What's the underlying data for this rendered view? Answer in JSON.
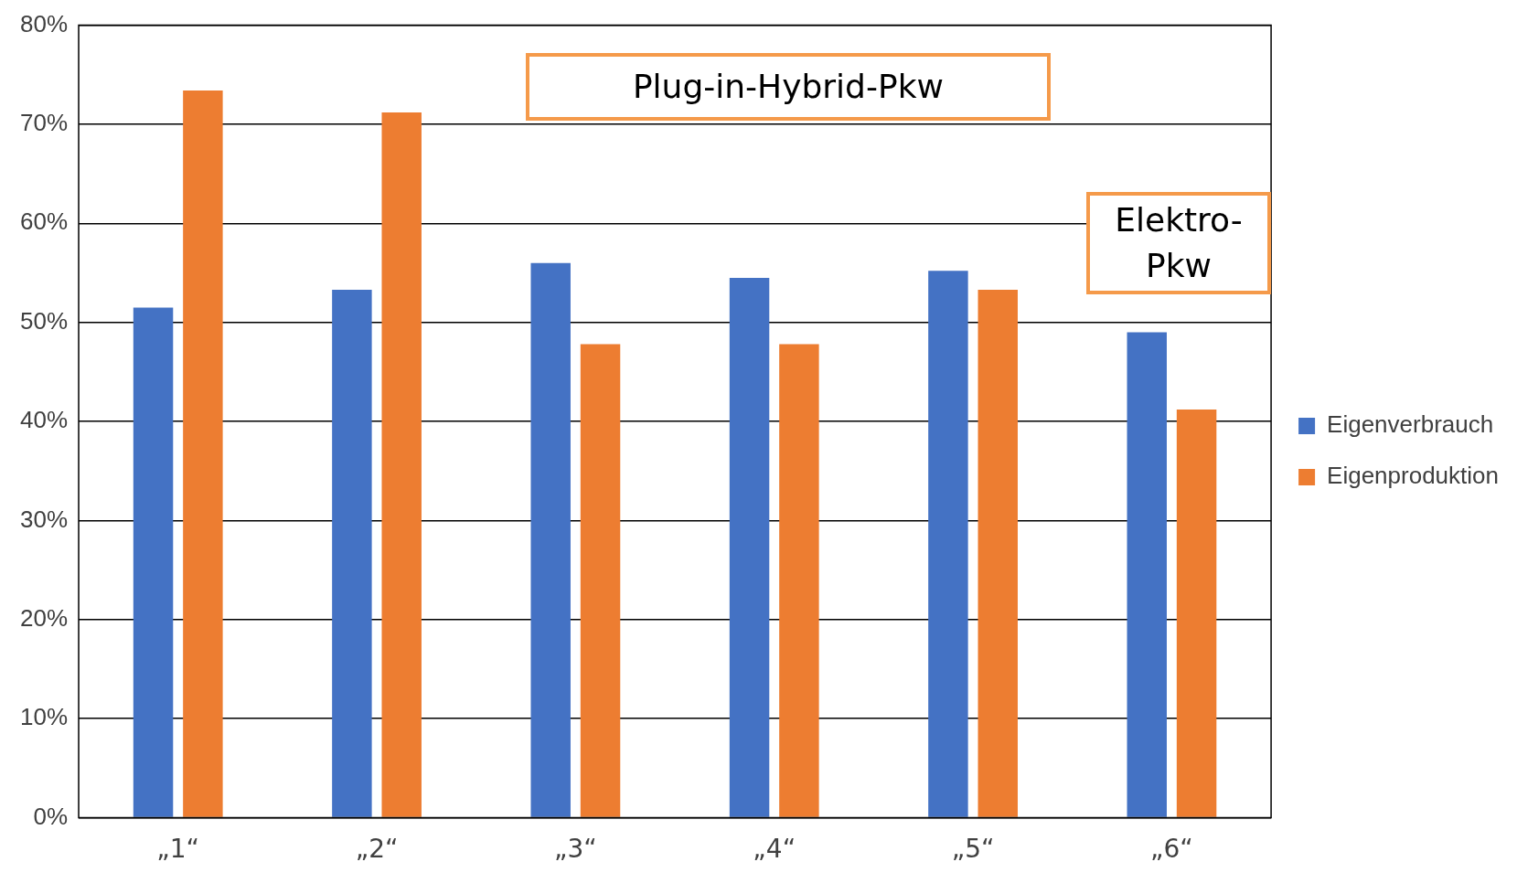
{
  "chart_data": {
    "type": "bar",
    "categories": [
      "„1“",
      "„2“",
      "„3“",
      "„4“",
      "„5“",
      "„6“"
    ],
    "series": [
      {
        "name": "Eigenverbrauch",
        "color": "#4472c4",
        "values": [
          51.5,
          53.3,
          56.0,
          54.5,
          55.2,
          49.0
        ]
      },
      {
        "name": "Eigenproduktion",
        "color": "#ed7d31",
        "values": [
          73.4,
          71.2,
          47.8,
          47.8,
          53.3,
          41.2
        ]
      }
    ],
    "ylim": [
      0,
      80
    ],
    "yticks": [
      {
        "value": 0,
        "label": "0%"
      },
      {
        "value": 10,
        "label": "10%"
      },
      {
        "value": 20,
        "label": "20%"
      },
      {
        "value": 30,
        "label": "30%"
      },
      {
        "value": 40,
        "label": "40%"
      },
      {
        "value": 50,
        "label": "50%"
      },
      {
        "value": 60,
        "label": "60%"
      },
      {
        "value": 70,
        "label": "70%"
      },
      {
        "value": 80,
        "label": "80%"
      }
    ],
    "grid": "y",
    "legend": "right",
    "annotations": [
      "Plug-in-Hybrid-Pkw",
      "Elektro-Pkw"
    ]
  }
}
